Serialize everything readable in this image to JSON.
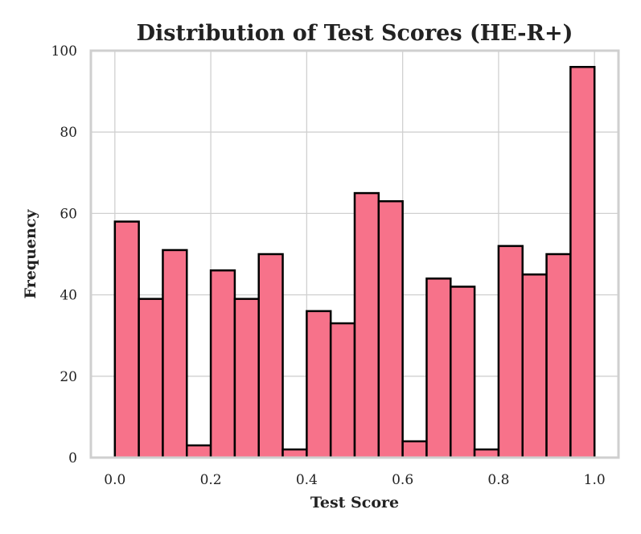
{
  "chart_data": {
    "type": "bar",
    "title": "Distribution of Test Scores (HE-R+)",
    "xlabel": "Test Score",
    "ylabel": "Frequency",
    "bin_edges": [
      0.0,
      0.05,
      0.1,
      0.15,
      0.2,
      0.25,
      0.3,
      0.35,
      0.4,
      0.45,
      0.5,
      0.55,
      0.6,
      0.65,
      0.7,
      0.75,
      0.8,
      0.85,
      0.9,
      0.95,
      1.0
    ],
    "values": [
      58,
      39,
      51,
      3,
      46,
      39,
      50,
      2,
      36,
      33,
      65,
      63,
      4,
      44,
      42,
      2,
      52,
      45,
      50,
      96
    ],
    "xlim": [
      -0.05,
      1.05
    ],
    "ylim": [
      0,
      100
    ],
    "xticks": [
      "0.0",
      "0.2",
      "0.4",
      "0.6",
      "0.8",
      "1.0"
    ],
    "yticks": [
      "0",
      "20",
      "40",
      "60",
      "80",
      "100"
    ],
    "bar_color": "#f7728a",
    "edge_color": "#000000",
    "grid": true
  }
}
